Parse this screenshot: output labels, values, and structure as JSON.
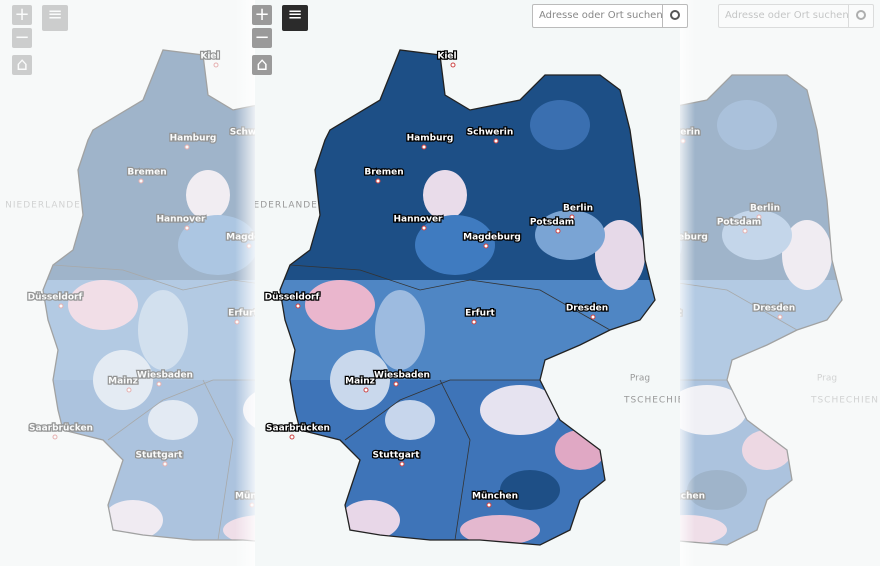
{
  "controls": {
    "zoom_in": "+",
    "zoom_out": "−"
  },
  "search": {
    "placeholder": "Adresse oder Ort suchen"
  },
  "countries": [
    "NIEDERLANDE",
    "TSCHECHIEN",
    "Prag"
  ],
  "cities": [
    "Kiel",
    "Hamburg",
    "Schwerin",
    "Bremen",
    "Hannover",
    "Berlin",
    "Potsdam",
    "Magdeburg",
    "Düsseldorf",
    "Erfurt",
    "Dresden",
    "Wiesbaden",
    "Mainz",
    "Saarbrücken",
    "Stuttgart",
    "München"
  ]
}
